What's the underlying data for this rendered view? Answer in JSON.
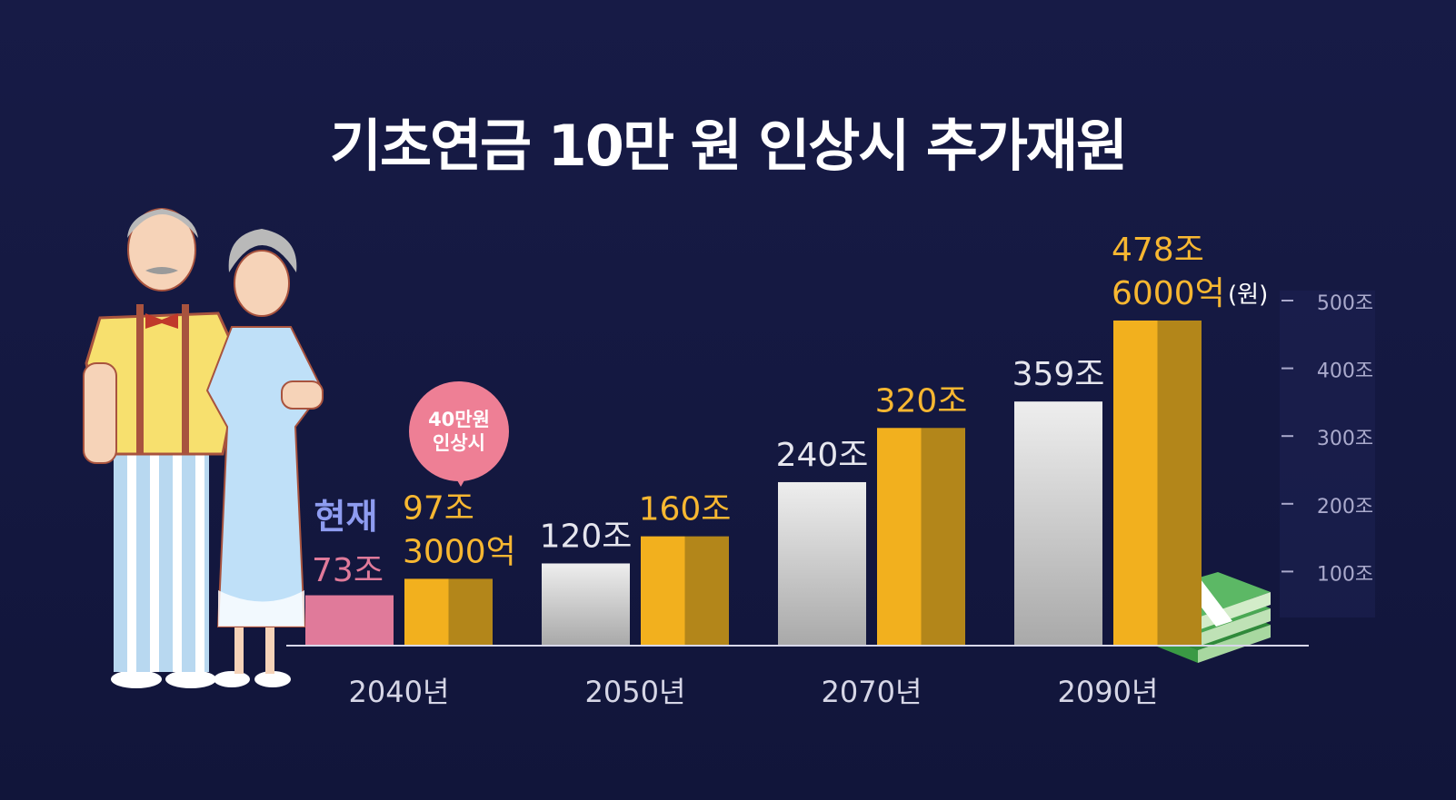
{
  "title": "기초연금 10만 원 인상시 추가재원",
  "bubble": {
    "line1": "40만원",
    "line2": "인상시"
  },
  "unit_label": "(원)",
  "colors": {
    "background": "#151944",
    "current": "#e07a9a",
    "projected_gray": "#c9c9c9",
    "projected_gold": "#f2b01e",
    "axis_text": "#aaaacc",
    "current_label": "#8e9cf0",
    "gold_label": "#f7b731"
  },
  "decorations": [
    "elderly-couple-illustration",
    "banknote-stack-icon"
  ],
  "chart_data": {
    "type": "bar",
    "categories": [
      "2040년",
      "2050년",
      "2070년",
      "2090년"
    ],
    "series": [
      {
        "values": [
          73,
          120,
          240,
          359
        ],
        "labels": [
          "73조",
          "120조",
          "240조",
          "359조"
        ]
      },
      {
        "values": [
          97.3,
          160,
          320,
          478.6
        ],
        "labels": [
          "97조 3000억",
          "160조",
          "320조",
          "478조 6000억"
        ]
      }
    ],
    "first_bar_tag": "현재",
    "yticks": [
      "100조",
      "200조",
      "300조",
      "400조",
      "500조"
    ],
    "ytick_values": [
      100,
      200,
      300,
      400,
      500
    ],
    "ylim": [
      0,
      500
    ]
  }
}
